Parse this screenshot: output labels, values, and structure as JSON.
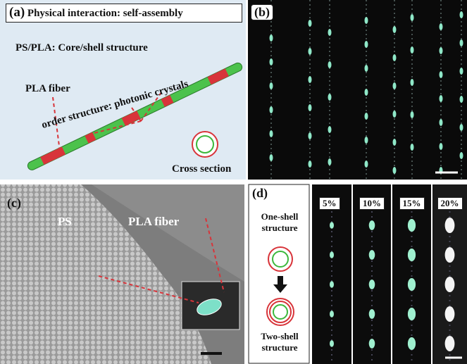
{
  "panel_a": {
    "label": "(a)",
    "title": "Physical interaction: self-assembly",
    "subtitle": "PS/PLA: Core/shell structure",
    "fiber_label": "PLA fiber",
    "order_label": "order structure: photonic crystals",
    "cross_section_label": "Cross section"
  },
  "panel_b": {
    "label": "(b)"
  },
  "panel_c": {
    "label": "(c)",
    "ps_label": "PS",
    "fiber_label": "PLA fiber"
  },
  "panel_d": {
    "label": "(d)",
    "one_shell": "One-shell structure",
    "two_shell": "Two-shell structure",
    "concentrations": [
      "5%",
      "10%",
      "15%",
      "20%"
    ]
  }
}
